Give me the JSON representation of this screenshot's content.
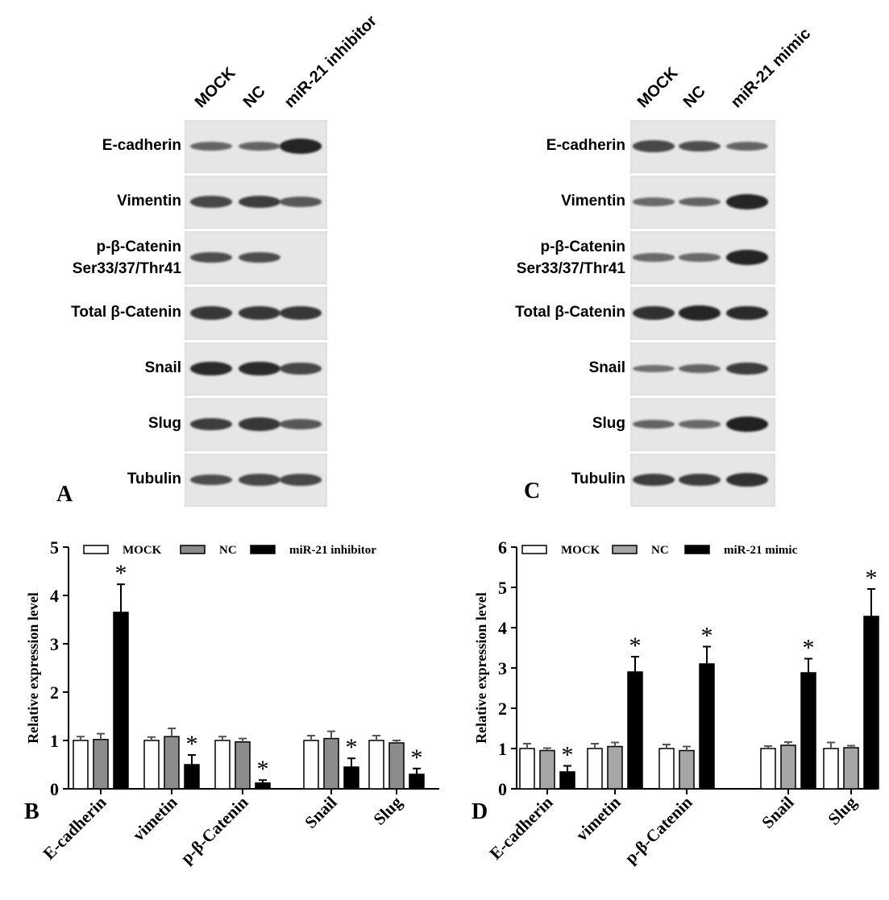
{
  "panelA": {
    "letter": "A",
    "lanes": [
      "MOCK",
      "NC",
      "miR-21 inhibitor"
    ],
    "rows": [
      {
        "label": "E-cadherin",
        "label2": "",
        "bands": [
          0.35,
          0.35,
          0.9
        ]
      },
      {
        "label": "Vimentin",
        "label2": "",
        "bands": [
          0.6,
          0.7,
          0.45
        ]
      },
      {
        "label": "p-β-Catenin",
        "label2": "Ser33/37/Thr41",
        "bands": [
          0.55,
          0.55,
          0.0
        ]
      },
      {
        "label": "Total β-Catenin",
        "label2": "",
        "bands": [
          0.75,
          0.75,
          0.75
        ]
      },
      {
        "label": "Snail",
        "label2": "",
        "bands": [
          0.85,
          0.85,
          0.6
        ]
      },
      {
        "label": "Slug",
        "label2": "",
        "bands": [
          0.7,
          0.75,
          0.45
        ]
      },
      {
        "label": "Tubulin",
        "label2": "",
        "bands": [
          0.55,
          0.6,
          0.6
        ]
      }
    ]
  },
  "panelC": {
    "letter": "C",
    "lanes": [
      "MOCK",
      "NC",
      "miR-21 mimic"
    ],
    "rows": [
      {
        "label": "E-cadherin",
        "label2": "",
        "bands": [
          0.6,
          0.55,
          0.35
        ]
      },
      {
        "label": "Vimentin",
        "label2": "",
        "bands": [
          0.3,
          0.35,
          0.9
        ]
      },
      {
        "label": "p-β-Catenin",
        "label2": "Ser33/37/Thr41",
        "bands": [
          0.3,
          0.3,
          0.9
        ]
      },
      {
        "label": "Total β-Catenin",
        "label2": "",
        "bands": [
          0.8,
          0.9,
          0.85
        ]
      },
      {
        "label": "Snail",
        "label2": "",
        "bands": [
          0.25,
          0.35,
          0.7
        ]
      },
      {
        "label": "Slug",
        "label2": "",
        "bands": [
          0.35,
          0.3,
          0.95
        ]
      },
      {
        "label": "Tubulin",
        "label2": "",
        "bands": [
          0.7,
          0.7,
          0.8
        ]
      }
    ]
  },
  "chart_data": [
    {
      "panel": "B",
      "type": "bar",
      "ylabel": "Relative expression level",
      "ylim": [
        0,
        5
      ],
      "yticks": [
        0,
        1,
        2,
        3,
        4,
        5
      ],
      "categories": [
        "E-cadherin",
        "vimetin",
        "p-β-Catenin",
        "Snail",
        "Slug"
      ],
      "series": [
        {
          "name": "MOCK",
          "color": "#ffffff",
          "values": [
            1.0,
            1.0,
            1.0,
            1.0,
            1.0
          ],
          "errors": [
            0.08,
            0.07,
            0.08,
            0.1,
            0.1
          ]
        },
        {
          "name": "NC",
          "color": "#8c8c8c",
          "values": [
            1.02,
            1.08,
            0.97,
            1.04,
            0.95
          ],
          "errors": [
            0.12,
            0.17,
            0.07,
            0.15,
            0.05
          ]
        },
        {
          "name": "miR-21 inhibitor",
          "color": "#000000",
          "values": [
            3.65,
            0.5,
            0.12,
            0.45,
            0.3
          ],
          "errors": [
            0.58,
            0.2,
            0.06,
            0.18,
            0.12
          ]
        }
      ],
      "significance": [
        "*",
        "*",
        "*",
        "*",
        "*"
      ],
      "legend": "top"
    },
    {
      "panel": "D",
      "type": "bar",
      "ylabel": "Relative expression level",
      "ylim": [
        0,
        6
      ],
      "yticks": [
        0,
        1,
        2,
        3,
        4,
        5,
        6
      ],
      "categories": [
        "E-cadherin",
        "vimetin",
        "p-β-Catenin",
        "Snail",
        "Slug"
      ],
      "series": [
        {
          "name": "MOCK",
          "color": "#ffffff",
          "values": [
            1.0,
            1.0,
            1.0,
            1.0,
            1.0
          ],
          "errors": [
            0.12,
            0.12,
            0.1,
            0.06,
            0.15
          ]
        },
        {
          "name": "NC",
          "color": "#a6a6a6",
          "values": [
            0.95,
            1.05,
            0.95,
            1.08,
            1.02
          ],
          "errors": [
            0.06,
            0.1,
            0.1,
            0.08,
            0.05
          ]
        },
        {
          "name": "miR-21 mimic",
          "color": "#000000",
          "values": [
            0.42,
            2.9,
            3.1,
            2.88,
            4.28
          ],
          "errors": [
            0.15,
            0.38,
            0.43,
            0.35,
            0.68
          ]
        }
      ],
      "significance": [
        "*",
        "*",
        "*",
        "*",
        "*"
      ],
      "legend": "top"
    }
  ],
  "chartB_letter": "B",
  "chartD_letter": "D"
}
